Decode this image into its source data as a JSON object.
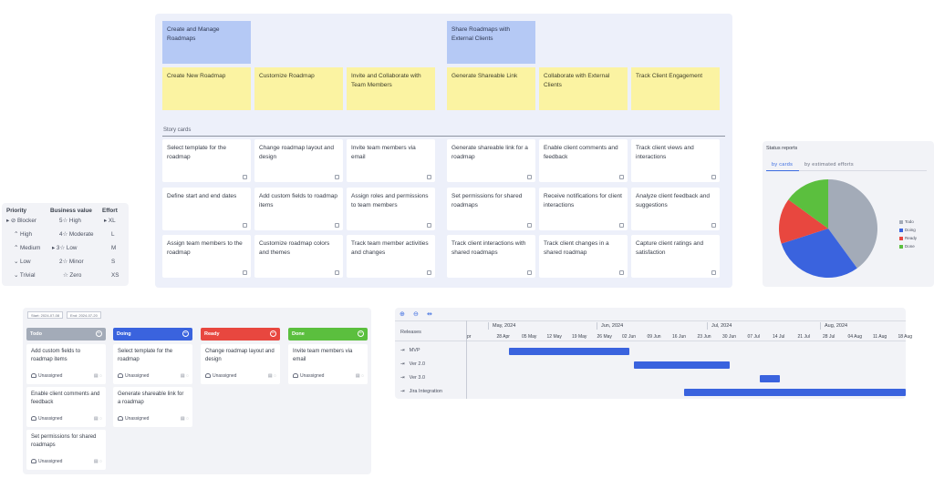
{
  "storymap": {
    "epics": [
      "Create and Manage Roadmaps",
      "Share Roadmaps with External Clients"
    ],
    "features": [
      "Create New Roadmap",
      "Customize Roadmap",
      "Invite and Collaborate with Team Members",
      "Generate Shareable Link",
      "Collaborate with External Clients",
      "Track Client Engagement"
    ],
    "story_label": "Story cards",
    "stories": [
      [
        "Select template for the roadmap",
        "Change roadmap layout and design",
        "Invite team members via email",
        "Generate shareable link for a roadmap",
        "Enable client comments and feedback",
        "Track client views and interactions"
      ],
      [
        "Define start and end dates",
        "Add custom fields to roadmap items",
        "Assign roles and permissions to team members",
        "Set permissions for shared roadmaps",
        "Receive notifications for client interactions",
        "Analyze client feedback and suggestions"
      ],
      [
        "Assign team members to the roadmap",
        "Customize roadmap colors and themes",
        "Track team member activities and changes",
        "Track client interactions with shared roadmaps",
        "Track client changes in a shared roadmap",
        "Capture client ratings and satisfaction"
      ]
    ]
  },
  "legend": {
    "headers": [
      "Priority",
      "Business value",
      "Effort"
    ],
    "priority": [
      "Blocker",
      "High",
      "Medium",
      "Low",
      "Trivial"
    ],
    "business_value": [
      "5☆ High",
      "4☆ Moderate",
      "3☆ Low",
      "2☆ Minor",
      "☆ Zero"
    ],
    "effort": [
      "XL",
      "L",
      "M",
      "S",
      "XS"
    ]
  },
  "status": {
    "title": "Status reports",
    "tab_cards": "by cards",
    "tab_efforts": "by estimated efforts",
    "legend": [
      {
        "label": "Todo",
        "color": "#a3abb8"
      },
      {
        "label": "Doing",
        "color": "#3a63de"
      },
      {
        "label": "Ready",
        "color": "#e8473f"
      },
      {
        "label": "Done",
        "color": "#5bbf3e"
      }
    ]
  },
  "chart_data": {
    "type": "pie",
    "categories": [
      "Todo",
      "Doing",
      "Ready",
      "Done"
    ],
    "values": [
      40,
      30,
      15,
      15
    ],
    "colors": [
      "#a3abb8",
      "#3a63de",
      "#e8473f",
      "#5bbf3e"
    ]
  },
  "kanban": {
    "chips": [
      "Start: 2024-07-08",
      "End: 2024-07-20"
    ],
    "columns": [
      {
        "title": "Todo",
        "color": "#a3abb8",
        "cards": [
          "Add custom fields to roadmap items",
          "Enable client comments and feedback",
          "Set permissions for shared roadmaps"
        ]
      },
      {
        "title": "Doing",
        "color": "#3a63de",
        "cards": [
          "Select template for the roadmap",
          "Generate shareable link for a roadmap"
        ]
      },
      {
        "title": "Ready",
        "color": "#e8473f",
        "cards": [
          "Change roadmap layout and design"
        ]
      },
      {
        "title": "Done",
        "color": "#5bbf3e",
        "cards": [
          "Invite team members via email"
        ]
      }
    ],
    "unassigned": "Unassigned"
  },
  "gantt": {
    "releases_label": "Releases",
    "months": [
      "May, 2024",
      "Jun, 2024",
      "Jul, 2024",
      "Aug, 2024"
    ],
    "weeks": [
      "pr",
      "28 Apr",
      "05 May",
      "12 May",
      "19 May",
      "26 May",
      "02 Jun",
      "09 Jun",
      "16 Jun",
      "23 Jun",
      "30 Jun",
      "07 Jul",
      "14 Jul",
      "21 Jul",
      "28 Jul",
      "04 Aug",
      "11 Aug",
      "18 Aug"
    ],
    "releases": [
      "MVP",
      "Ver 2.0",
      "Ver 3.0",
      "Jira Integration"
    ],
    "bars": [
      {
        "start": "28 Apr",
        "end": "02 Jun"
      },
      {
        "start": "02 Jun",
        "end": "30 Jun"
      },
      {
        "start": "07 Jul",
        "end": "14 Jul"
      },
      {
        "start": "16 Jun",
        "end": "18 Aug"
      }
    ]
  }
}
